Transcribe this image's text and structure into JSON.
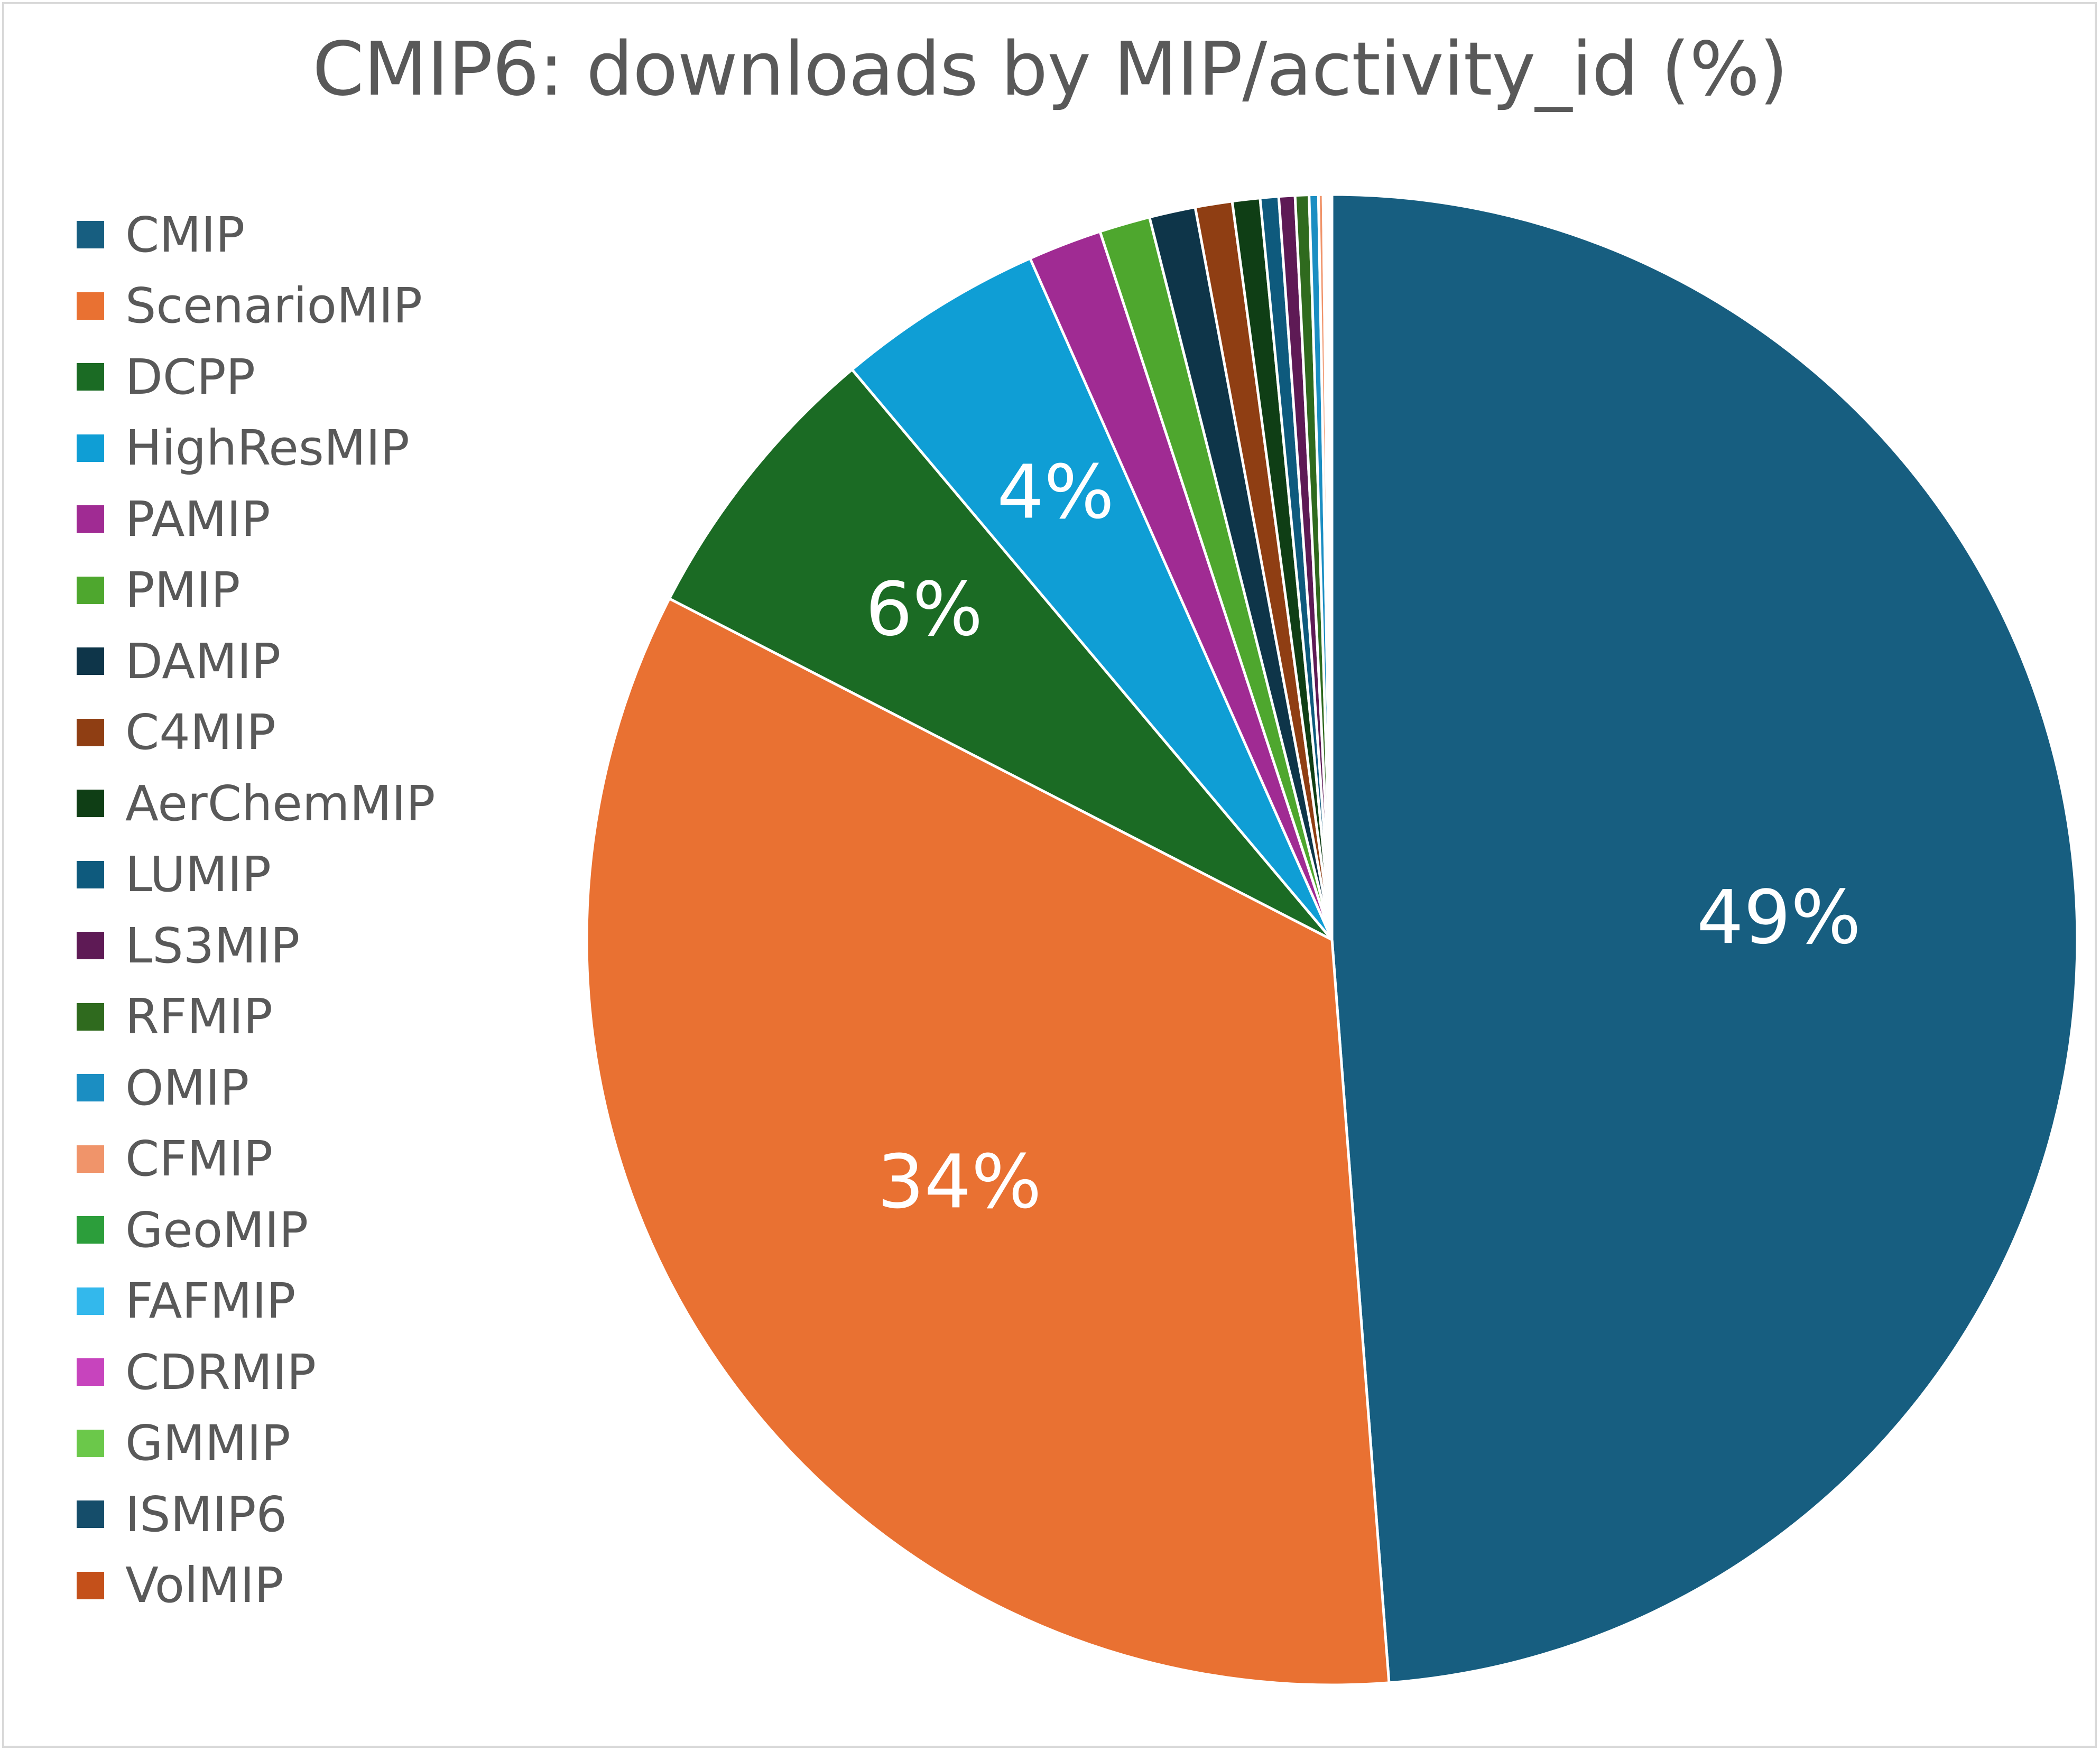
{
  "chart_data": {
    "type": "pie",
    "title": "CMIP6: downloads by MIP/activity_id (%)",
    "legend_position": "left",
    "slices": [
      {
        "name": "CMIP",
        "value": 48.8,
        "color": "#175E80",
        "label": "49%"
      },
      {
        "name": "ScenarioMIP",
        "value": 33.8,
        "color": "#E97132",
        "label": "34%"
      },
      {
        "name": "DCPP",
        "value": 6.3,
        "color": "#1B6B24",
        "label": "6%"
      },
      {
        "name": "HighResMIP",
        "value": 4.5,
        "color": "#0F9ED5",
        "label": "4%"
      },
      {
        "name": "PAMIP",
        "value": 1.6,
        "color": "#A02B93",
        "label": ""
      },
      {
        "name": "PMIP",
        "value": 1.1,
        "color": "#4EA72E",
        "label": ""
      },
      {
        "name": "DAMIP",
        "value": 1.0,
        "color": "#0E3549",
        "label": ""
      },
      {
        "name": "C4MIP",
        "value": 0.8,
        "color": "#8F3E13",
        "label": ""
      },
      {
        "name": "AerChemMIP",
        "value": 0.6,
        "color": "#0F3E15",
        "label": ""
      },
      {
        "name": "LUMIP",
        "value": 0.4,
        "color": "#0E5A7D",
        "label": ""
      },
      {
        "name": "LS3MIP",
        "value": 0.35,
        "color": "#5E1A55",
        "label": ""
      },
      {
        "name": "RFMIP",
        "value": 0.3,
        "color": "#2F6A1E",
        "label": ""
      },
      {
        "name": "OMIP",
        "value": 0.2,
        "color": "#1B8EC2",
        "label": ""
      },
      {
        "name": "CFMIP",
        "value": 0.1,
        "color": "#F0946A",
        "label": ""
      },
      {
        "name": "GeoMIP",
        "value": 0.05,
        "color": "#2C9E3B",
        "label": ""
      },
      {
        "name": "FAFMIP",
        "value": 0.04,
        "color": "#33B8EC",
        "label": ""
      },
      {
        "name": "CDRMIP",
        "value": 0.03,
        "color": "#C744BD",
        "label": ""
      },
      {
        "name": "GMMIP",
        "value": 0.03,
        "color": "#6BC84A",
        "label": ""
      },
      {
        "name": "ISMIP6",
        "value": 0.02,
        "color": "#154D6A",
        "label": ""
      },
      {
        "name": "VolMIP",
        "value": 0.02,
        "color": "#C4501A",
        "label": ""
      }
    ]
  }
}
